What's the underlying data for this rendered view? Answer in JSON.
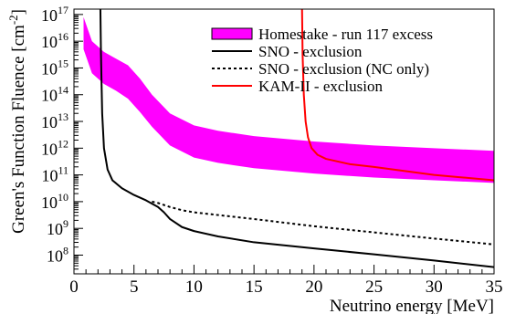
{
  "chart_data": {
    "type": "line",
    "xlabel": "Neutrino energy [MeV]",
    "ylabel_main": "Green's Function Fluence [cm",
    "ylabel_sup": "-2",
    "ylabel_close": "]",
    "xlim": [
      0,
      35
    ],
    "ylim_log10": [
      7.3,
      17.2
    ],
    "yscale": "log",
    "x_ticks": [
      0,
      5,
      10,
      15,
      20,
      25,
      30,
      35
    ],
    "y_tick_exponents": [
      8,
      9,
      10,
      11,
      12,
      13,
      14,
      15,
      16,
      17
    ],
    "y_tick_base": "10",
    "legend_position": "top-right",
    "series": [
      {
        "name": "Homestake - run 117 excess",
        "kind": "band",
        "color": "#ff00ff",
        "x": [
          0.8,
          1.5,
          2.5,
          3.5,
          4.5,
          5.5,
          6.5,
          8,
          10,
          12,
          15,
          20,
          25,
          30,
          35
        ],
        "y_upper_log10": [
          16.9,
          16.0,
          15.6,
          15.35,
          15.1,
          14.6,
          14.0,
          13.3,
          12.85,
          12.65,
          12.45,
          12.25,
          12.1,
          12.0,
          11.9
        ],
        "y_lower_log10": [
          15.7,
          14.8,
          14.4,
          14.15,
          13.85,
          13.35,
          12.8,
          12.1,
          11.65,
          11.45,
          11.25,
          11.05,
          10.9,
          10.8,
          10.7
        ]
      },
      {
        "name": "SNO - exclusion",
        "kind": "line",
        "style": "solid",
        "color": "#000000",
        "x": [
          2.2,
          2.25,
          2.35,
          2.5,
          2.8,
          3.2,
          4.0,
          5.0,
          6.0,
          7.0,
          7.5,
          8.0,
          9.0,
          10,
          12,
          15,
          20,
          25,
          30,
          35
        ],
        "y_log10": [
          17.3,
          15.5,
          13.3,
          12.0,
          11.2,
          10.8,
          10.5,
          10.25,
          10.05,
          9.8,
          9.6,
          9.35,
          9.05,
          8.9,
          8.7,
          8.48,
          8.25,
          8.03,
          7.8,
          7.55
        ]
      },
      {
        "name": "SNO - exclusion (NC only)",
        "kind": "line",
        "style": "dotted",
        "color": "#000000",
        "x": [
          6.5,
          7.0,
          8.0,
          9.0,
          10,
          12,
          15,
          20,
          25,
          30,
          35
        ],
        "y_log10": [
          10.0,
          9.95,
          9.8,
          9.68,
          9.6,
          9.5,
          9.35,
          9.08,
          8.85,
          8.62,
          8.4
        ]
      },
      {
        "name": "KAM-II - exclusion",
        "kind": "line",
        "style": "solid",
        "color": "#ff0000",
        "x": [
          19.0,
          19.05,
          19.15,
          19.3,
          19.5,
          19.8,
          20.3,
          21,
          23,
          25,
          28,
          30,
          32,
          35
        ],
        "y_log10": [
          17.3,
          15.5,
          14.0,
          13.0,
          12.4,
          12.0,
          11.75,
          11.6,
          11.4,
          11.3,
          11.12,
          11.0,
          10.92,
          10.8
        ]
      }
    ]
  }
}
